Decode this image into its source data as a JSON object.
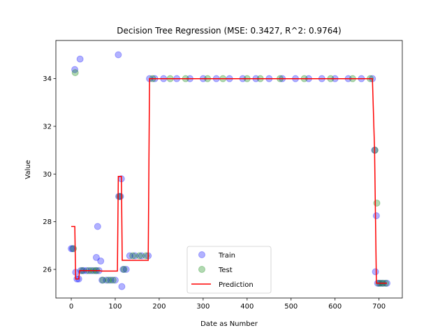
{
  "chart_data": {
    "type": "scatter",
    "title": "Decision Tree Regression (MSE: 0.3427, R^2: 0.9764)",
    "xlabel": "Date as Number",
    "ylabel": "Value",
    "xlim": [
      -35,
      753
    ],
    "ylim": [
      24.8,
      35.6
    ],
    "xticks": [
      0,
      100,
      200,
      300,
      400,
      500,
      600,
      700
    ],
    "yticks": [
      26,
      28,
      30,
      32,
      34
    ],
    "grid": false,
    "legend_position": "lower center",
    "colors": {
      "train": "#0000ff",
      "test": "#008000",
      "prediction": "#ff0000"
    },
    "series": [
      {
        "name": "Train",
        "type": "scatter",
        "points": [
          [
            0,
            26.87
          ],
          [
            3,
            26.87
          ],
          [
            8,
            34.38
          ],
          [
            10,
            25.88
          ],
          [
            13,
            25.6
          ],
          [
            17,
            25.6
          ],
          [
            20,
            34.82
          ],
          [
            22,
            25.95
          ],
          [
            28,
            25.95
          ],
          [
            35,
            25.95
          ],
          [
            45,
            25.95
          ],
          [
            55,
            25.95
          ],
          [
            57,
            26.5
          ],
          [
            60,
            27.8
          ],
          [
            63,
            25.95
          ],
          [
            67,
            26.35
          ],
          [
            70,
            25.55
          ],
          [
            80,
            25.55
          ],
          [
            90,
            25.55
          ],
          [
            100,
            25.55
          ],
          [
            107,
            35.0
          ],
          [
            108,
            29.06
          ],
          [
            112,
            29.06
          ],
          [
            114,
            29.8
          ],
          [
            115,
            25.28
          ],
          [
            118,
            26.0
          ],
          [
            125,
            26.0
          ],
          [
            133,
            26.57
          ],
          [
            145,
            26.57
          ],
          [
            160,
            26.57
          ],
          [
            175,
            26.57
          ],
          [
            178,
            34.0
          ],
          [
            190,
            34.0
          ],
          [
            210,
            34.0
          ],
          [
            240,
            34.0
          ],
          [
            270,
            34.0
          ],
          [
            300,
            34.0
          ],
          [
            330,
            34.0
          ],
          [
            360,
            34.0
          ],
          [
            390,
            34.0
          ],
          [
            420,
            34.0
          ],
          [
            450,
            34.0
          ],
          [
            480,
            34.0
          ],
          [
            510,
            34.0
          ],
          [
            540,
            34.0
          ],
          [
            570,
            34.0
          ],
          [
            600,
            34.0
          ],
          [
            630,
            34.0
          ],
          [
            660,
            34.0
          ],
          [
            685,
            34.0
          ],
          [
            690,
            31.0
          ],
          [
            692,
            25.9
          ],
          [
            694,
            28.25
          ],
          [
            697,
            25.42
          ],
          [
            703,
            25.42
          ],
          [
            710,
            25.42
          ],
          [
            718,
            25.42
          ]
        ]
      },
      {
        "name": "Test",
        "type": "scatter",
        "points": [
          [
            5,
            26.87
          ],
          [
            9,
            34.25
          ],
          [
            25,
            25.95
          ],
          [
            40,
            25.95
          ],
          [
            50,
            25.95
          ],
          [
            58,
            25.95
          ],
          [
            72,
            25.55
          ],
          [
            85,
            25.55
          ],
          [
            95,
            25.55
          ],
          [
            110,
            29.06
          ],
          [
            120,
            26.0
          ],
          [
            140,
            26.57
          ],
          [
            155,
            26.57
          ],
          [
            170,
            26.57
          ],
          [
            185,
            34.0
          ],
          [
            225,
            34.0
          ],
          [
            260,
            34.0
          ],
          [
            310,
            34.0
          ],
          [
            345,
            34.0
          ],
          [
            400,
            34.0
          ],
          [
            430,
            34.0
          ],
          [
            475,
            34.0
          ],
          [
            530,
            34.0
          ],
          [
            590,
            34.0
          ],
          [
            640,
            34.0
          ],
          [
            680,
            34.0
          ],
          [
            691,
            31.0
          ],
          [
            695,
            28.78
          ],
          [
            700,
            25.42
          ],
          [
            707,
            25.42
          ],
          [
            715,
            25.42
          ]
        ]
      },
      {
        "name": "Prediction",
        "type": "line",
        "points": [
          [
            0,
            27.8
          ],
          [
            8,
            27.8
          ],
          [
            10,
            25.6
          ],
          [
            17,
            25.6
          ],
          [
            19,
            25.95
          ],
          [
            65,
            25.95
          ],
          [
            68,
            25.93
          ],
          [
            105,
            25.93
          ],
          [
            107,
            29.9
          ],
          [
            114,
            29.9
          ],
          [
            116,
            26.38
          ],
          [
            175,
            26.38
          ],
          [
            178,
            34.0
          ],
          [
            685,
            34.0
          ],
          [
            690,
            31.0
          ],
          [
            694,
            25.42
          ],
          [
            718,
            25.42
          ]
        ]
      }
    ]
  }
}
